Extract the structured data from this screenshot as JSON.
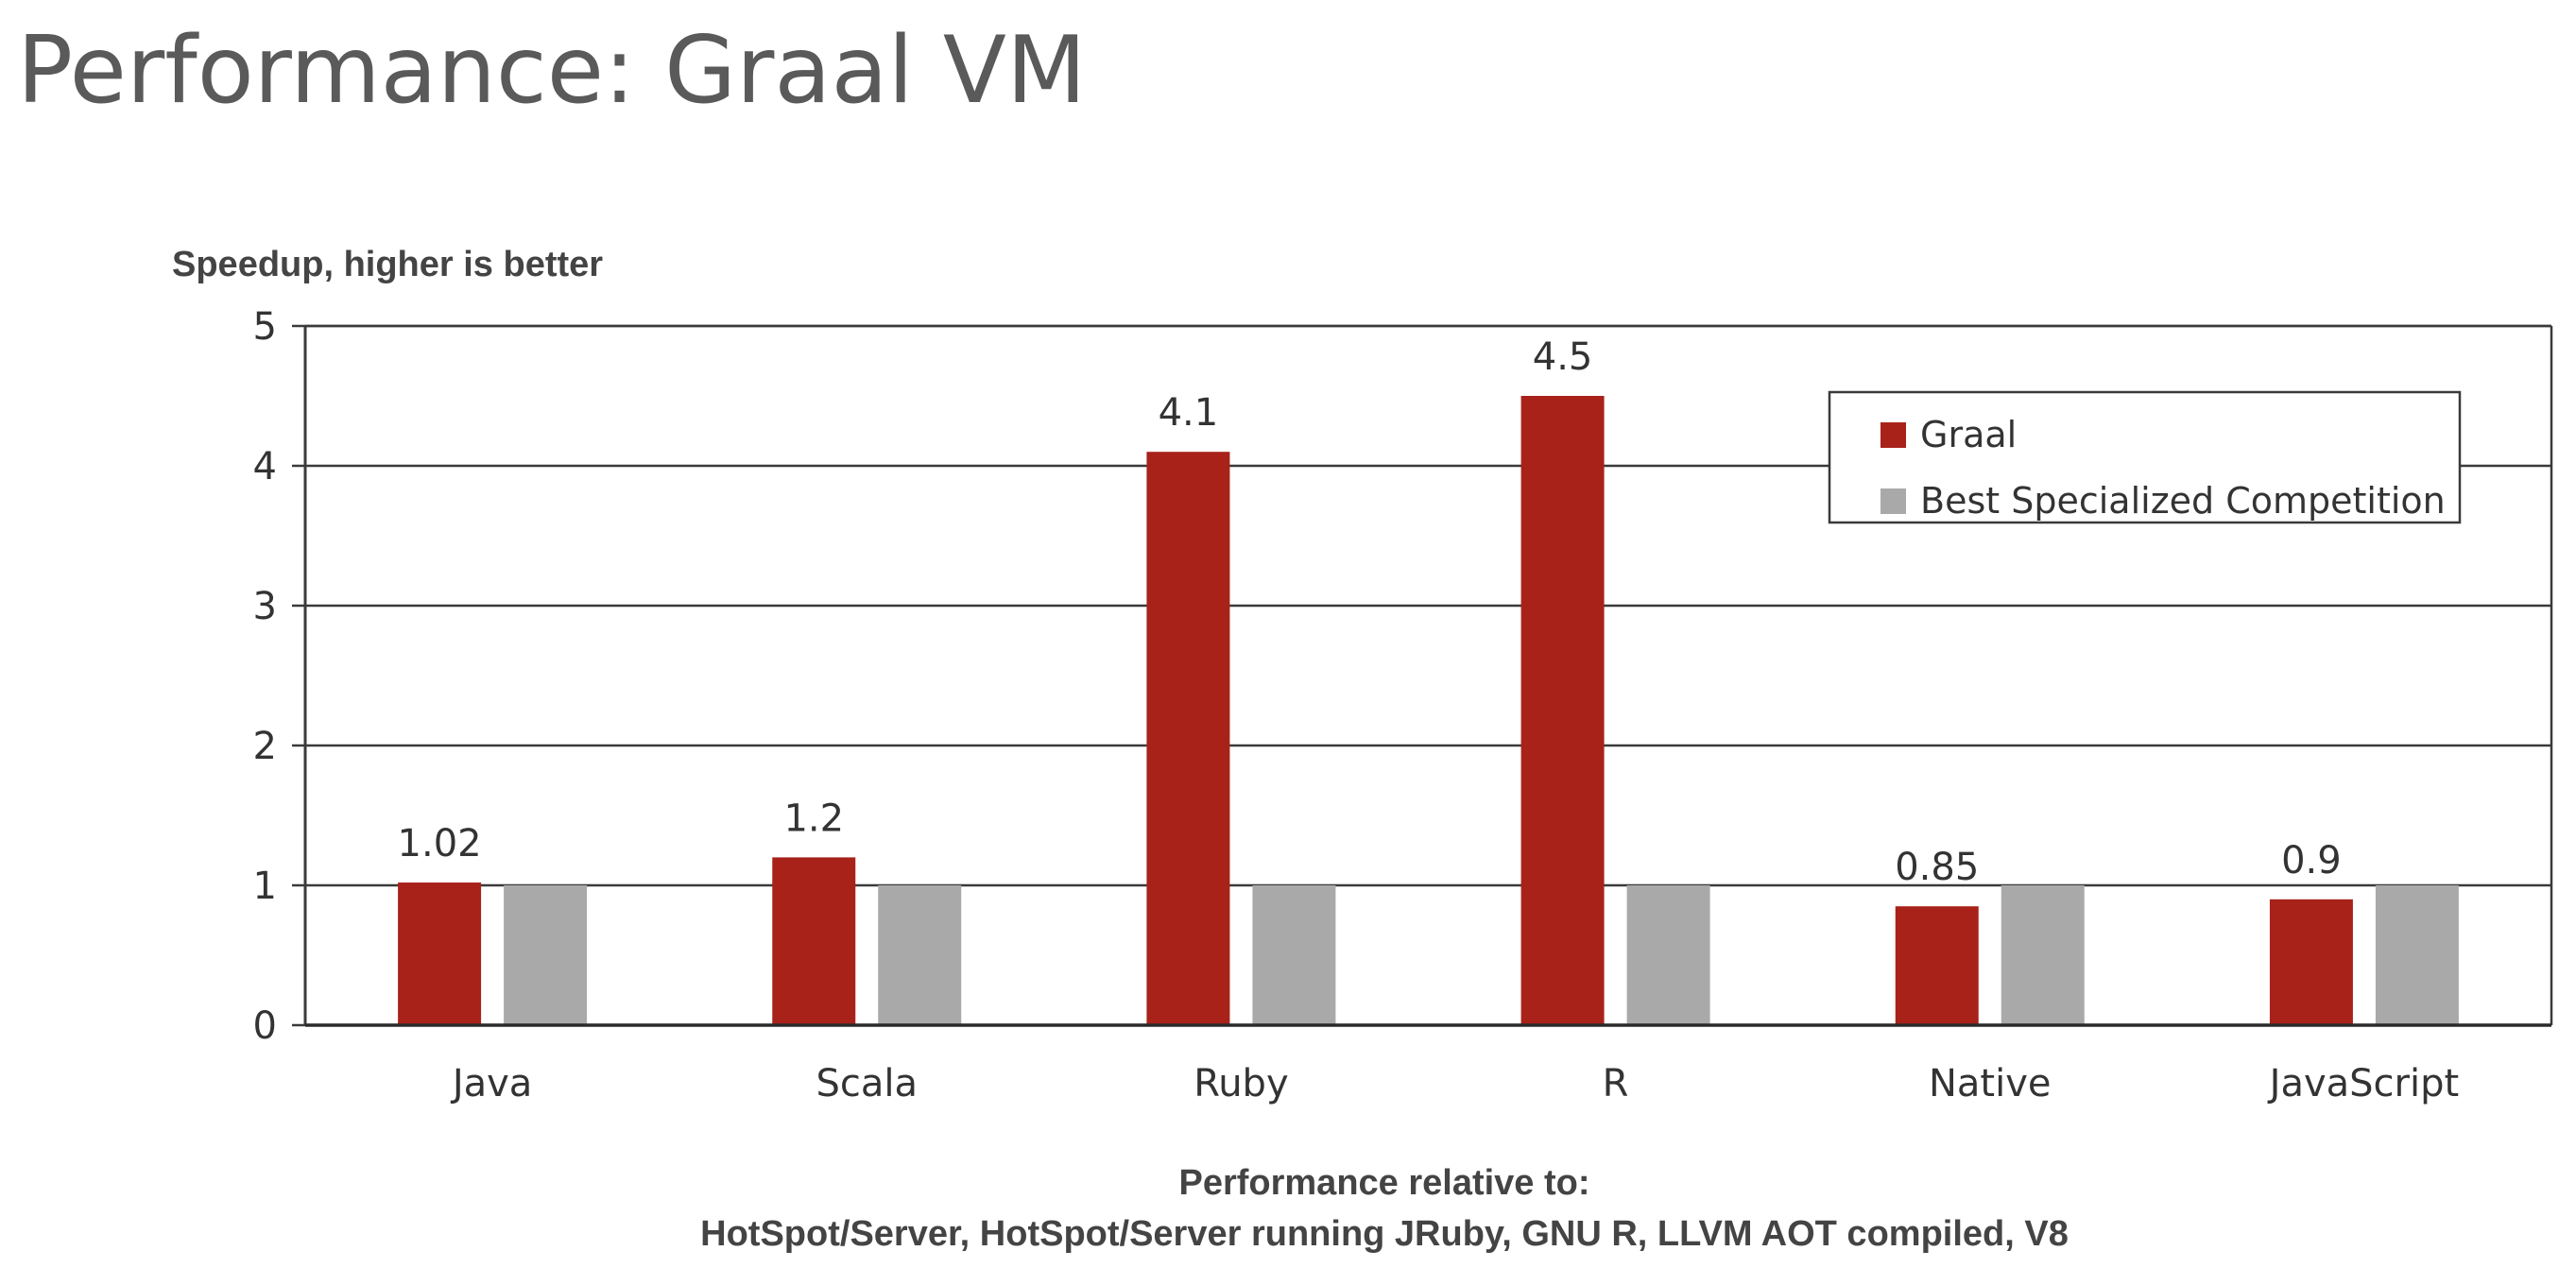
{
  "slide": {
    "title": "Performance: Graal VM"
  },
  "chart_data": {
    "type": "bar",
    "title": "",
    "ylabel": "Speedup, higher is better",
    "xlabel": "",
    "categories": [
      "Java",
      "Scala",
      "Ruby",
      "R",
      "Native",
      "JavaScript"
    ],
    "series": [
      {
        "name": "Graal",
        "values": [
          1.02,
          1.2,
          4.1,
          4.5,
          0.85,
          0.9
        ],
        "data_labels": [
          "1.02",
          "1.2",
          "4.1",
          "4.5",
          "0.85",
          "0.9"
        ],
        "color": "#a8221a"
      },
      {
        "name": "Best Specialized Competition",
        "values": [
          1,
          1,
          1,
          1,
          1,
          1
        ],
        "color": "#a9a9a9"
      }
    ],
    "ylim": [
      0,
      5
    ],
    "yticks": [
      0,
      1,
      2,
      3,
      4,
      5
    ],
    "grid": true,
    "legend": "top-right",
    "footer": [
      "Performance relative to:",
      "HotSpot/Server, HotSpot/Server running JRuby, GNU R, LLVM AOT compiled, V8"
    ]
  }
}
